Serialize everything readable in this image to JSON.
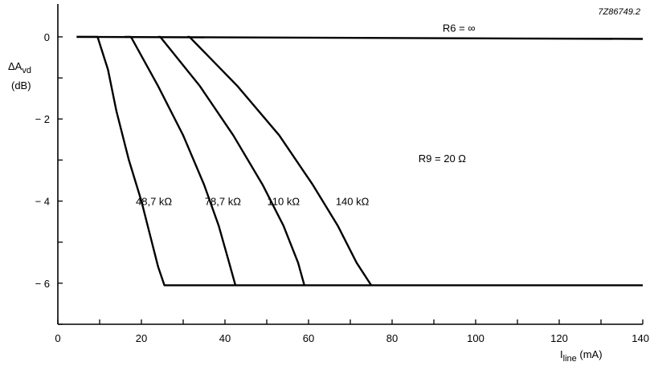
{
  "chart_data": {
    "type": "line",
    "reference": "7Z86749.2",
    "ylabel": "ΔA",
    "ylabel_sub": "vd",
    "ylabel_unit": "(dB)",
    "xlabel": "I",
    "xlabel_sub": "line",
    "xlabel_unit": " (mA)",
    "xlim": [
      0,
      140
    ],
    "ylim": [
      -7,
      0.8
    ],
    "x_ticks": [
      0,
      20,
      40,
      60,
      80,
      100,
      120,
      140
    ],
    "y_ticks": [
      0,
      -2,
      -4,
      -6
    ],
    "x_tick_labels": [
      "0",
      "20",
      "40",
      "60",
      "80",
      "100",
      "120",
      "140"
    ],
    "y_tick_labels": [
      "0",
      "− 2",
      "− 4",
      "− 6"
    ],
    "annotations": [
      {
        "text": "R6 = ∞",
        "x": 96,
        "y": 0.22
      },
      {
        "text": "R9 = 20 Ω",
        "x": 92,
        "y": -2.95
      }
    ],
    "series": [
      {
        "name": "R6 = ∞",
        "points": [
          [
            4.5,
            0
          ],
          [
            140,
            -0.05
          ]
        ]
      },
      {
        "name": "48,7 kΩ",
        "points": [
          [
            4.5,
            0
          ],
          [
            9.5,
            0
          ],
          [
            12,
            -0.8
          ],
          [
            14,
            -1.8
          ],
          [
            17,
            -3
          ],
          [
            20,
            -4
          ],
          [
            22,
            -4.8
          ],
          [
            24,
            -5.6
          ],
          [
            25.5,
            -6.05
          ],
          [
            140,
            -6.05
          ]
        ]
      },
      {
        "name": "78,7 kΩ",
        "points": [
          [
            16,
            0
          ],
          [
            17.5,
            0
          ],
          [
            24,
            -1.2
          ],
          [
            30,
            -2.4
          ],
          [
            35,
            -3.6
          ],
          [
            38.5,
            -4.6
          ],
          [
            41,
            -5.5
          ],
          [
            42.5,
            -6.05
          ]
        ]
      },
      {
        "name": "110 kΩ",
        "points": [
          [
            24,
            0
          ],
          [
            24.5,
            0
          ],
          [
            34,
            -1.2
          ],
          [
            42,
            -2.4
          ],
          [
            49,
            -3.6
          ],
          [
            54,
            -4.6
          ],
          [
            57.5,
            -5.5
          ],
          [
            59,
            -6.05
          ]
        ]
      },
      {
        "name": "140 kΩ",
        "points": [
          [
            31,
            0
          ],
          [
            31.5,
            0
          ],
          [
            43,
            -1.2
          ],
          [
            53,
            -2.4
          ],
          [
            61,
            -3.6
          ],
          [
            67,
            -4.6
          ],
          [
            71.5,
            -5.5
          ],
          [
            75,
            -6.05
          ]
        ]
      }
    ],
    "curve_labels": [
      {
        "text": "48,7 kΩ",
        "x": 23,
        "y": -4.0
      },
      {
        "text": "78,7 kΩ",
        "x": 39.5,
        "y": -4.0
      },
      {
        "text": "110 kΩ",
        "x": 54,
        "y": -4.0
      },
      {
        "text": "140 kΩ",
        "x": 70.5,
        "y": -4.0
      }
    ],
    "grid": false
  }
}
